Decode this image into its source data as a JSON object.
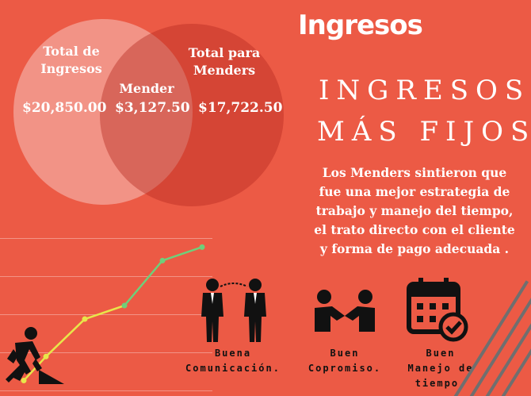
{
  "title": "Ingresos",
  "headline": {
    "line1": "INGRESOS",
    "line2": "MÁS FIJOS"
  },
  "venn": {
    "left_label_1": "Total de",
    "left_label_2": "Ingresos",
    "left_amount": "$20,850.00",
    "middle_label": "Mender",
    "middle_amount": "$3,127.50",
    "right_label_1": "Total para",
    "right_label_2": "Menders",
    "right_amount": "$17,722.50"
  },
  "paragraph": {
    "line1": "Los Menders sintieron que",
    "line2": "fue una mejor estrategia de",
    "line3": "trabajo y manejo del tiempo,",
    "line4": "el trato directo con el cliente",
    "line5": "y forma de pago adecuada ."
  },
  "features": [
    {
      "icon": "business-people-talking-icon",
      "line1": "Buena",
      "line2": "Comunicación.",
      "line3": ""
    },
    {
      "icon": "handshake-icon",
      "line1": "Buen",
      "line2": "Copromiso.",
      "line3": ""
    },
    {
      "icon": "calendar-check-icon",
      "line1": "Buen",
      "line2": "Manejo de",
      "line3": "tiempo."
    }
  ],
  "trend": {
    "values": [
      0.5,
      2.1,
      4.6,
      5.5,
      8.5,
      9.4
    ]
  },
  "colors": {
    "background": "#ec5a45",
    "trend_yellow": "#e8e64a",
    "trend_green": "#6fcf7a",
    "icon": "#111111"
  }
}
